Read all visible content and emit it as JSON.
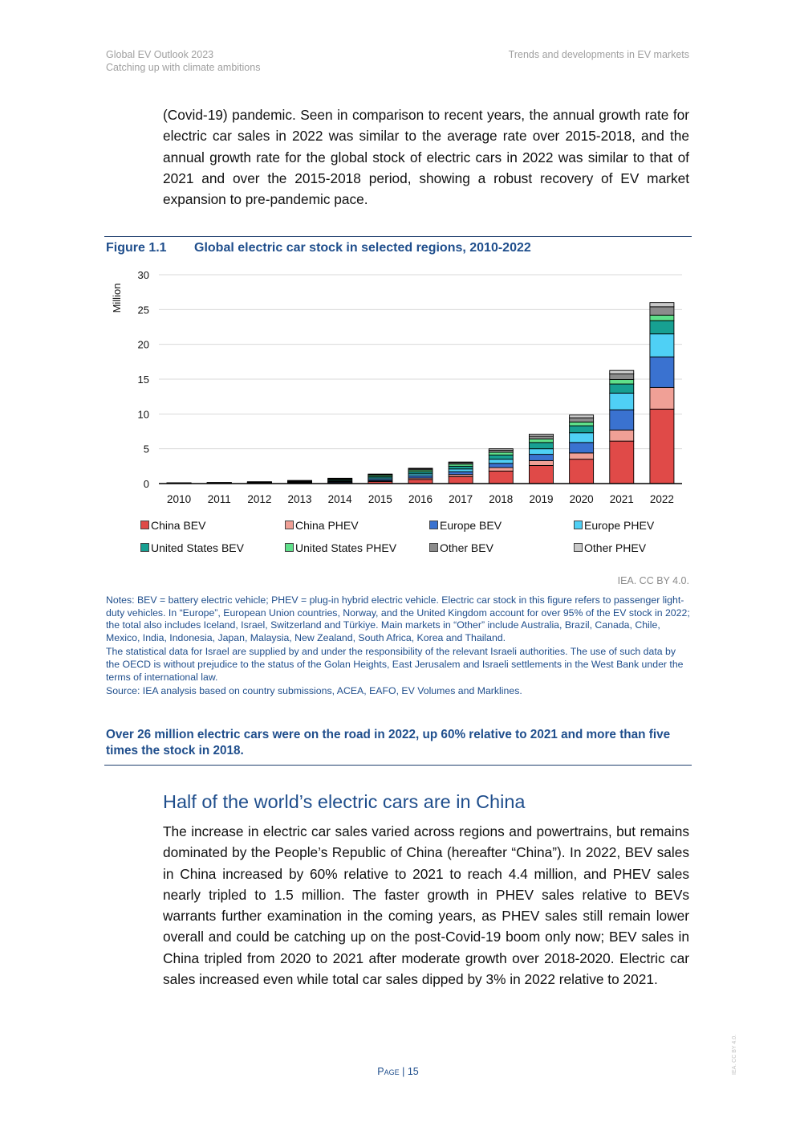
{
  "header": {
    "doc_title": "Global EV Outlook 2023",
    "doc_subtitle": "Catching up with climate ambitions",
    "section": "Trends and developments in EV markets"
  },
  "paragraph_top": "(Covid-19) pandemic. Seen in comparison to recent years, the annual growth rate for electric car sales in 2022 was similar to the average rate over 2015-2018, and the annual growth rate for the global stock of electric cars in 2022 was similar to that of 2021 and over the 2015-2018 period, showing a robust recovery of EV market expansion to pre-pandemic pace.",
  "figure": {
    "number": "Figure 1.1",
    "title": "Global electric car stock in selected regions, 2010-2022",
    "credit": "IEA. CC BY 4.0."
  },
  "chart_data": {
    "type": "bar",
    "stacked": true,
    "ylabel": "Million",
    "ylim": [
      0,
      30
    ],
    "yticks": [
      0,
      5,
      10,
      15,
      20,
      25,
      30
    ],
    "grid": true,
    "legend_position": "bottom",
    "categories": [
      "2010",
      "2011",
      "2012",
      "2013",
      "2014",
      "2015",
      "2016",
      "2017",
      "2018",
      "2019",
      "2020",
      "2021",
      "2022"
    ],
    "series": [
      {
        "name": "China BEV",
        "color": "#e04a48",
        "values": [
          0.01,
          0.02,
          0.03,
          0.05,
          0.1,
          0.3,
          0.6,
          1.0,
          1.8,
          2.6,
          3.5,
          6.1,
          10.7
        ]
      },
      {
        "name": "China PHEV",
        "color": "#f0a096",
        "values": [
          0.0,
          0.0,
          0.01,
          0.01,
          0.03,
          0.1,
          0.2,
          0.3,
          0.5,
          0.7,
          0.9,
          1.6,
          3.1
        ]
      },
      {
        "name": "Europe BEV",
        "color": "#3a72d0",
        "values": [
          0.01,
          0.02,
          0.04,
          0.07,
          0.13,
          0.2,
          0.3,
          0.4,
          0.6,
          0.9,
          1.5,
          2.9,
          4.4
        ]
      },
      {
        "name": "Europe PHEV",
        "color": "#4fd0f5",
        "values": [
          0.0,
          0.01,
          0.02,
          0.05,
          0.1,
          0.2,
          0.3,
          0.4,
          0.6,
          0.8,
          1.4,
          2.4,
          3.3
        ]
      },
      {
        "name": "United States BEV",
        "color": "#17a092",
        "values": [
          0.01,
          0.01,
          0.03,
          0.07,
          0.13,
          0.2,
          0.3,
          0.4,
          0.6,
          0.9,
          1.0,
          1.3,
          1.9
        ]
      },
      {
        "name": "United States PHEV",
        "color": "#5fe08a",
        "values": [
          0.0,
          0.01,
          0.04,
          0.08,
          0.13,
          0.2,
          0.25,
          0.3,
          0.4,
          0.5,
          0.55,
          0.65,
          0.8
        ]
      },
      {
        "name": "Other BEV",
        "color": "#8c8c8c",
        "values": [
          0.01,
          0.02,
          0.03,
          0.05,
          0.08,
          0.1,
          0.15,
          0.2,
          0.3,
          0.4,
          0.6,
          0.8,
          1.2
        ]
      },
      {
        "name": "Other PHEV",
        "color": "#c9c9c9",
        "values": [
          0.0,
          0.0,
          0.01,
          0.02,
          0.03,
          0.05,
          0.1,
          0.1,
          0.2,
          0.3,
          0.4,
          0.5,
          0.6
        ]
      }
    ]
  },
  "notes": {
    "n1": "Notes: BEV = battery electric vehicle; PHEV = plug-in hybrid electric vehicle. Electric car stock in this figure refers to passenger light-duty vehicles. In “Europe”, European Union countries, Norway, and the United Kingdom account for over 95% of the EV stock in 2022; the total also includes Iceland, Israel, Switzerland and Türkiye. Main markets in “Other” include Australia, Brazil, Canada, Chile, Mexico, India, Indonesia, Japan, Malaysia, New Zealand, South Africa, Korea and Thailand.",
    "n2": "The statistical data for Israel are supplied by and under the responsibility of the relevant Israeli authorities. The use of such data by the OECD is without prejudice to the status of the Golan Heights, East Jerusalem and Israeli settlements in the West Bank under the terms of international law.",
    "n3": "Source: IEA analysis based on country submissions, ACEA, EAFO, EV Volumes and Marklines."
  },
  "takeaway": "Over 26 million electric cars were on the road in 2022, up 60% relative to 2021 and more than five times the stock in 2018.",
  "section_heading": "Half of the world’s electric cars are in China",
  "paragraph_bottom": "The increase in electric car sales varied across regions and powertrains, but remains dominated by the People’s Republic of China (hereafter “China”). In 2022, BEV sales in China increased by 60% relative to 2021 to reach 4.4 million, and PHEV sales nearly tripled to 1.5 million. The faster growth in PHEV sales relative to BEVs warrants further examination in the coming years, as PHEV sales still remain lower overall and could be catching up on the post-Covid-19 boom only now; BEV sales in China tripled from 2020 to 2021 after moderate growth over 2018-2020. Electric car sales increased even while total car sales dipped by 3% in 2022 relative to 2021.",
  "footer": {
    "page_label": "Page",
    "page_number": "15",
    "side_credit": "IEA. CC BY 4.0."
  }
}
